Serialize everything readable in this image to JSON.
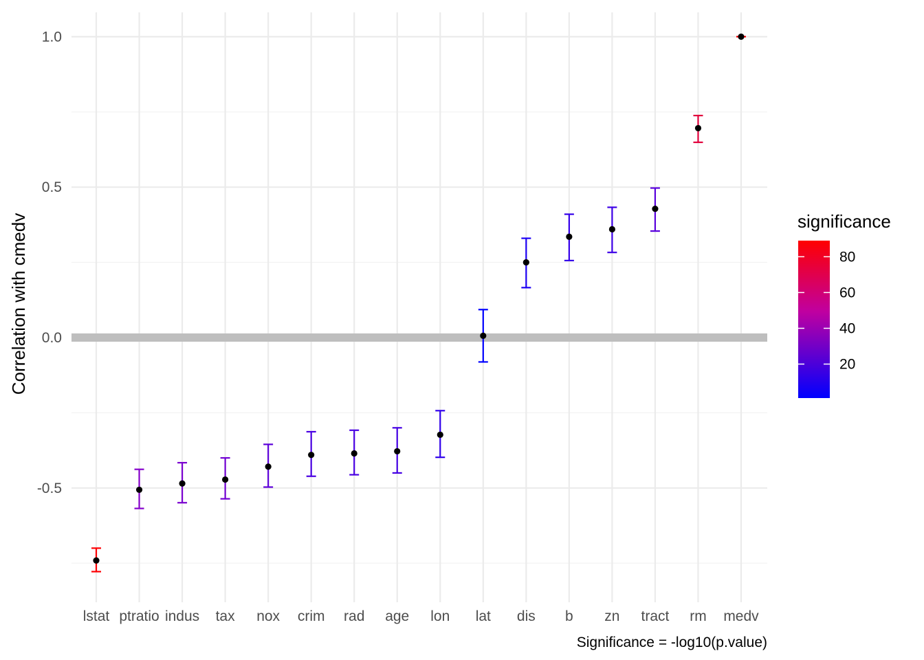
{
  "chart_data": {
    "type": "scatter",
    "ylabel": "Correlation with cmedv",
    "caption": "Significance = -log10(p.value)",
    "ylim": [
      -0.86,
      1.03
    ],
    "yticks": [
      -0.5,
      0.0,
      0.5,
      1.0
    ],
    "ytick_labels": [
      "-0.5",
      "0.0",
      "0.5",
      "1.0"
    ],
    "reference_line": {
      "y": 0.0,
      "color": "#bebebe"
    },
    "grid": true,
    "categories": [
      "lstat",
      "ptratio",
      "indus",
      "tax",
      "nox",
      "crim",
      "rad",
      "age",
      "lon",
      "lat",
      "dis",
      "b",
      "zn",
      "tract",
      "rm",
      "medv"
    ],
    "points": [
      {
        "label": "lstat",
        "estimate": -0.741,
        "conf_low": -0.778,
        "conf_high": -0.7,
        "significance": 88
      },
      {
        "label": "ptratio",
        "estimate": -0.506,
        "conf_low": -0.568,
        "conf_high": -0.438,
        "significance": 34
      },
      {
        "label": "indus",
        "estimate": -0.485,
        "conf_low": -0.549,
        "conf_high": -0.416,
        "significance": 31
      },
      {
        "label": "tax",
        "estimate": -0.472,
        "conf_low": -0.536,
        "conf_high": -0.4,
        "significance": 29
      },
      {
        "label": "nox",
        "estimate": -0.429,
        "conf_low": -0.497,
        "conf_high": -0.355,
        "significance": 24
      },
      {
        "label": "crim",
        "estimate": -0.39,
        "conf_low": -0.461,
        "conf_high": -0.313,
        "significance": 19
      },
      {
        "label": "rad",
        "estimate": -0.385,
        "conf_low": -0.456,
        "conf_high": -0.308,
        "significance": 19
      },
      {
        "label": "age",
        "estimate": -0.378,
        "conf_low": -0.45,
        "conf_high": -0.3,
        "significance": 18
      },
      {
        "label": "lon",
        "estimate": -0.323,
        "conf_low": -0.398,
        "conf_high": -0.243,
        "significance": 13
      },
      {
        "label": "lat",
        "estimate": 0.006,
        "conf_low": -0.081,
        "conf_high": 0.093,
        "significance": 1
      },
      {
        "label": "dis",
        "estimate": 0.25,
        "conf_low": 0.166,
        "conf_high": 0.33,
        "significance": 8
      },
      {
        "label": "b",
        "estimate": 0.335,
        "conf_low": 0.256,
        "conf_high": 0.41,
        "significance": 14
      },
      {
        "label": "zn",
        "estimate": 0.36,
        "conf_low": 0.283,
        "conf_high": 0.433,
        "significance": 16
      },
      {
        "label": "tract",
        "estimate": 0.428,
        "conf_low": 0.354,
        "conf_high": 0.497,
        "significance": 23
      },
      {
        "label": "rm",
        "estimate": 0.696,
        "conf_low": 0.649,
        "conf_high": 0.738,
        "significance": 74
      },
      {
        "label": "medv",
        "estimate": 1.0,
        "conf_low": 1.0,
        "conf_high": 1.0,
        "significance": 88
      }
    ],
    "legend": {
      "title": "significance",
      "position": "right",
      "range": [
        1,
        89
      ],
      "breaks": [
        20,
        40,
        60,
        80
      ],
      "break_labels": [
        "20",
        "40",
        "60",
        "80"
      ],
      "low_color": "#0000ff",
      "mid_color": "#a000c0",
      "high_color": "#ff0000"
    },
    "point_color": "#000000"
  }
}
